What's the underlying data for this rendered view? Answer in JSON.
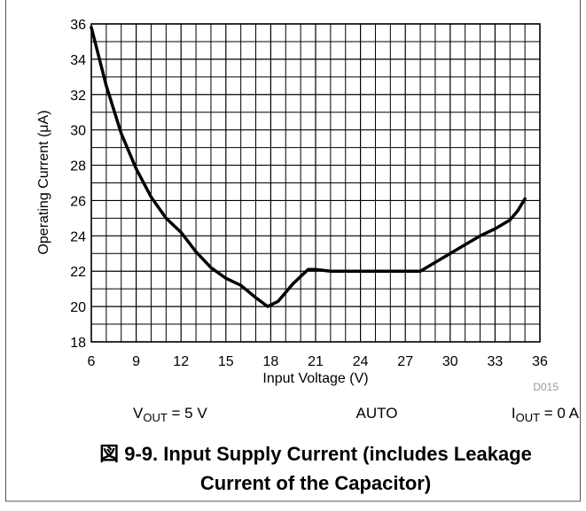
{
  "chart_data": {
    "type": "line",
    "x_label": "Input Voltage (V)",
    "y_label": "Operating Current (μA)",
    "code": "D015",
    "notes": [
      {
        "main": "V",
        "sub": "OUT",
        "rest": " = 5 V"
      },
      {
        "main": "AUTO"
      },
      {
        "main": "I",
        "sub": "OUT",
        "rest": " = 0 A"
      }
    ],
    "caption": [
      "図 9-9. Input Supply Current (includes Leakage",
      "Current of the Capacitor)"
    ],
    "x": [
      6,
      7,
      8,
      9,
      10,
      11,
      12,
      13,
      14,
      15,
      16,
      17,
      17.8,
      18.5,
      19.5,
      20.5,
      21,
      22,
      24,
      26,
      27,
      28,
      29,
      30,
      31,
      32,
      33,
      34,
      34.5,
      35
    ],
    "series": [
      {
        "color": "#000000",
        "values": [
          35.8,
          32.5,
          29.8,
          27.8,
          26.2,
          25,
          24.2,
          23.1,
          22.2,
          21.6,
          21.2,
          20.5,
          20,
          20.3,
          21.3,
          22.1,
          22.1,
          22,
          22,
          22,
          22,
          22,
          22.5,
          23,
          23.5,
          24,
          24.4,
          24.9,
          25.4,
          26.1
        ]
      }
    ],
    "xlim": [
      6,
      36
    ],
    "xticks": [
      6,
      9,
      12,
      15,
      18,
      21,
      24,
      27,
      30,
      33,
      36
    ],
    "ylim": [
      18,
      36
    ],
    "yticks": [
      18,
      20,
      22,
      24,
      26,
      28,
      30,
      32,
      34,
      36
    ],
    "grid": true
  }
}
